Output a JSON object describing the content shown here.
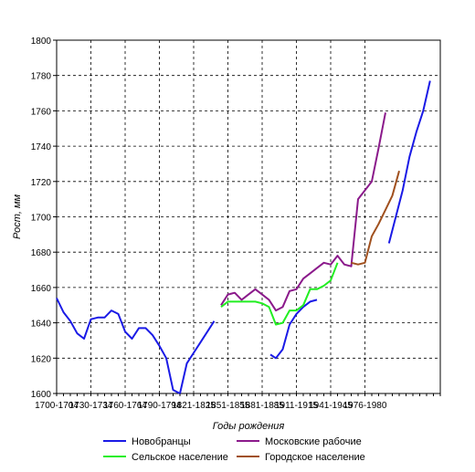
{
  "chart_data": {
    "type": "line",
    "xlabel": "Годы рождения",
    "ylabel": "Рост, мм",
    "ylim": [
      1600,
      1800
    ],
    "yticks": [
      1600,
      1620,
      1640,
      1660,
      1680,
      1700,
      1720,
      1740,
      1760,
      1780,
      1800
    ],
    "xlim": [
      0,
      56
    ],
    "x_tick_labels": [
      {
        "x": 0,
        "label": "1700-1704"
      },
      {
        "x": 5,
        "label": "1730-1734"
      },
      {
        "x": 10,
        "label": "1760-1764"
      },
      {
        "x": 15,
        "label": "1790-1794"
      },
      {
        "x": 20,
        "label": "1821-1825"
      },
      {
        "x": 25,
        "label": "1851-1855"
      },
      {
        "x": 30,
        "label": "1881-1885"
      },
      {
        "x": 35,
        "label": "1911-1915"
      },
      {
        "x": 40,
        "label": "1941-1945"
      },
      {
        "x": 45,
        "label": "1976-1980"
      }
    ],
    "grid": true,
    "legend_position": "bottom",
    "series": [
      {
        "name": "Новобранцы",
        "color": "#1a1ae6",
        "segments": [
          [
            [
              0,
              1654
            ],
            [
              1,
              1646
            ],
            [
              2,
              1641
            ],
            [
              3,
              1634
            ],
            [
              4,
              1631
            ],
            [
              5,
              1642
            ],
            [
              6,
              1643
            ],
            [
              7,
              1643
            ],
            [
              8,
              1647
            ],
            [
              9,
              1645
            ],
            [
              10,
              1635
            ],
            [
              11,
              1631
            ],
            [
              12,
              1637
            ],
            [
              13,
              1637
            ],
            [
              14,
              1633
            ],
            [
              15,
              1627
            ],
            [
              16,
              1620
            ],
            [
              17,
              1602
            ],
            [
              18,
              1600
            ],
            [
              19,
              1617
            ],
            [
              20,
              1623
            ],
            [
              21,
              1629
            ],
            [
              22,
              1635
            ],
            [
              23,
              1641
            ]
          ],
          [
            [
              31.2,
              1622
            ],
            [
              32,
              1620
            ],
            [
              33,
              1625
            ],
            [
              34,
              1639
            ],
            [
              35,
              1645
            ],
            [
              36,
              1649
            ],
            [
              37,
              1652
            ],
            [
              38,
              1653
            ]
          ],
          [
            [
              48.5,
              1685
            ],
            [
              49.5,
              1700
            ],
            [
              50.5,
              1715
            ],
            [
              51.5,
              1734
            ],
            [
              52.5,
              1748
            ],
            [
              53.5,
              1760
            ],
            [
              54.5,
              1777
            ]
          ]
        ]
      },
      {
        "name": "Московские рабочие",
        "color": "#8b1a8b",
        "segments": [
          [
            [
              24,
              1650
            ],
            [
              25,
              1656
            ],
            [
              26,
              1657
            ],
            [
              27,
              1653
            ],
            [
              28,
              1656
            ],
            [
              29,
              1659
            ],
            [
              30,
              1656
            ],
            [
              31,
              1653
            ],
            [
              32,
              1647
            ],
            [
              33,
              1649
            ],
            [
              34,
              1658
            ],
            [
              35,
              1659
            ],
            [
              36,
              1665
            ],
            [
              37,
              1668
            ],
            [
              38,
              1671
            ],
            [
              39,
              1674
            ],
            [
              40,
              1673
            ],
            [
              41,
              1678
            ],
            [
              42,
              1673
            ],
            [
              43,
              1672
            ],
            [
              44,
              1710
            ],
            [
              45,
              1715
            ],
            [
              46,
              1720
            ],
            [
              47,
              1739
            ],
            [
              48,
              1759
            ]
          ]
        ]
      },
      {
        "name": "Сельское население",
        "color": "#22ee22",
        "segments": [
          [
            [
              24,
              1649
            ],
            [
              25,
              1652
            ],
            [
              26,
              1652
            ],
            [
              27,
              1652
            ],
            [
              28,
              1652
            ],
            [
              29,
              1652
            ],
            [
              30,
              1651
            ],
            [
              31,
              1649
            ],
            [
              32,
              1639
            ],
            [
              33,
              1640
            ],
            [
              34,
              1647
            ],
            [
              35,
              1647
            ],
            [
              36,
              1650
            ],
            [
              37,
              1659
            ],
            [
              38,
              1659
            ],
            [
              39,
              1661
            ],
            [
              40,
              1664
            ],
            [
              41,
              1674
            ]
          ]
        ]
      },
      {
        "name": "Городское население",
        "color": "#a0501e",
        "segments": [
          [
            [
              43,
              1674
            ],
            [
              44,
              1673
            ],
            [
              45,
              1674
            ],
            [
              46,
              1689
            ],
            [
              47,
              1696
            ],
            [
              48,
              1704
            ],
            [
              49,
              1712
            ],
            [
              50,
              1726
            ]
          ]
        ]
      }
    ]
  }
}
